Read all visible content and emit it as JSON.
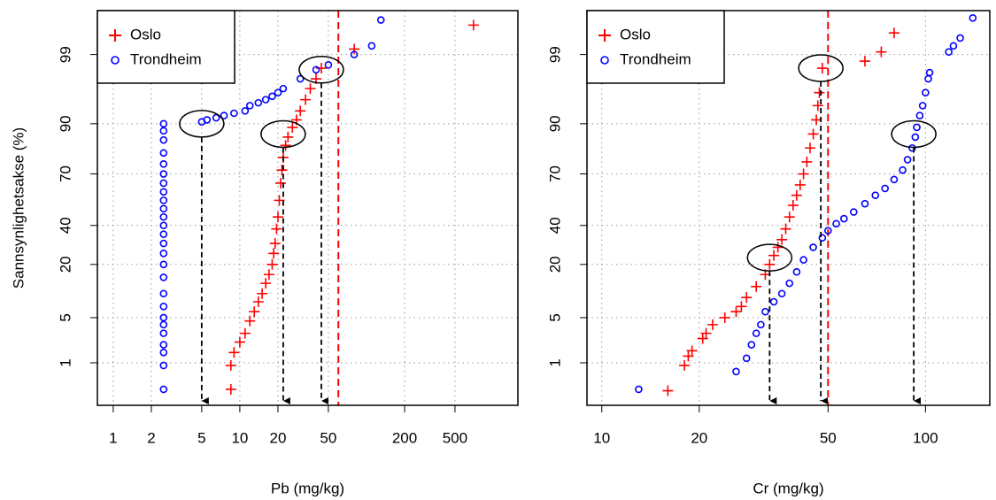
{
  "chart_data": [
    {
      "type": "scatter",
      "xlabel": "Pb (mg/kg)",
      "ylabel": "Sannsynlighetsakse (%)",
      "xscale": "log",
      "yscale": "probability",
      "xlim": [
        0.75,
        1570
      ],
      "ylim": [
        0.15,
        99.86
      ],
      "xticks": [
        1,
        2,
        5,
        10,
        20,
        50,
        200,
        500
      ],
      "yticks": [
        1,
        5,
        20,
        40,
        70,
        90,
        99
      ],
      "grid": true,
      "legend": "upper left",
      "threshold": {
        "x": 60,
        "color": "#ff0000"
      },
      "highlights": [
        {
          "x": 5,
          "y": 90
        },
        {
          "x": 22,
          "y": 87
        },
        {
          "x": 44,
          "y": 98.2
        }
      ],
      "series": [
        {
          "name": "Oslo",
          "color": "#ff0000",
          "marker": "plus",
          "x": [
            8.5,
            8.5,
            9,
            10,
            11,
            12,
            13,
            14,
            15,
            16,
            17,
            18,
            18.5,
            19,
            19.5,
            20,
            20.5,
            21,
            21.5,
            22,
            23,
            24,
            26,
            28,
            30,
            33,
            36,
            40,
            44,
            80,
            700
          ],
          "values": [
            0.32,
            0.9,
            1.5,
            2.2,
            3,
            4.5,
            6,
            8,
            10,
            13,
            16,
            20,
            25,
            30,
            38,
            45,
            55,
            65,
            72,
            78,
            83,
            86,
            89,
            91,
            93,
            95,
            96.5,
            97.5,
            98.3,
            99.2,
            99.72
          ]
        },
        {
          "name": "Trondheim",
          "color": "#0000ff",
          "marker": "circle",
          "x": [
            2.5,
            2.5,
            2.5,
            2.5,
            2.5,
            2.5,
            2.5,
            2.5,
            2.5,
            2.5,
            2.5,
            2.5,
            2.5,
            2.5,
            2.5,
            2.5,
            2.5,
            2.5,
            2.5,
            2.5,
            2.5,
            2.5,
            2.5,
            2.5,
            2.5,
            2.5,
            5,
            5.5,
            6.5,
            7.5,
            9,
            11,
            12,
            14,
            16,
            18,
            20,
            22,
            30,
            40,
            50,
            80,
            110,
            130
          ],
          "values": [
            0.32,
            0.9,
            1.5,
            2,
            3,
            4,
            5,
            7,
            10,
            15,
            20,
            25,
            30,
            35,
            40,
            45,
            50,
            55,
            60,
            65,
            70,
            75,
            80,
            85,
            88,
            90,
            90.5,
            91,
            91.5,
            92,
            92.5,
            93,
            94,
            94.5,
            95,
            95.5,
            96,
            96.5,
            97.5,
            98.2,
            98.5,
            99,
            99.3,
            99.78
          ]
        }
      ]
    },
    {
      "type": "scatter",
      "xlabel": "Cr (mg/kg)",
      "xscale": "log",
      "yscale": "probability",
      "xlim": [
        9,
        158
      ],
      "ylim": [
        0.15,
        99.86
      ],
      "xticks": [
        10,
        20,
        50,
        100
      ],
      "yticks": [
        1,
        5,
        20,
        40,
        70,
        90,
        99
      ],
      "grid": true,
      "legend": "upper left",
      "threshold": {
        "x": 50,
        "color": "#ff0000"
      },
      "highlights": [
        {
          "x": 33,
          "y": 23
        },
        {
          "x": 47.5,
          "y": 98.3
        },
        {
          "x": 92,
          "y": 87
        }
      ],
      "series": [
        {
          "name": "Oslo",
          "color": "#ff0000",
          "marker": "plus",
          "x": [
            16,
            18,
            18.5,
            19,
            20.5,
            21,
            22,
            24,
            26,
            27,
            28,
            30,
            32,
            33,
            34,
            35,
            36,
            37,
            38,
            39,
            40,
            41,
            42,
            43,
            44,
            45,
            46,
            46.5,
            47,
            48,
            65,
            73,
            80
          ],
          "values": [
            0.3,
            0.9,
            1.3,
            1.6,
            2.5,
            3,
            4,
            5,
            6,
            7,
            9,
            12,
            16,
            20,
            24,
            28,
            32,
            38,
            45,
            52,
            58,
            64,
            70,
            76,
            82,
            87,
            91,
            94,
            96,
            98.3,
            98.7,
            99.1,
            99.6
          ]
        },
        {
          "name": "Trondheim",
          "color": "#0000ff",
          "marker": "circle",
          "x": [
            13,
            26,
            28,
            29,
            30,
            31,
            32,
            34,
            36,
            38,
            40,
            42,
            45,
            48,
            50,
            53,
            56,
            60,
            65,
            70,
            75,
            80,
            85,
            88,
            91,
            93,
            94,
            96,
            98,
            100,
            102,
            103,
            118,
            122,
            128,
            140
          ],
          "values": [
            0.32,
            0.7,
            1.2,
            2,
            3,
            4,
            6,
            8,
            10,
            13,
            17,
            22,
            28,
            33,
            37,
            41,
            44,
            48,
            53,
            58,
            62,
            67,
            72,
            77,
            82,
            86,
            89,
            92,
            94,
            96,
            97.5,
            98,
            99.1,
            99.3,
            99.5,
            99.8
          ]
        }
      ]
    }
  ]
}
